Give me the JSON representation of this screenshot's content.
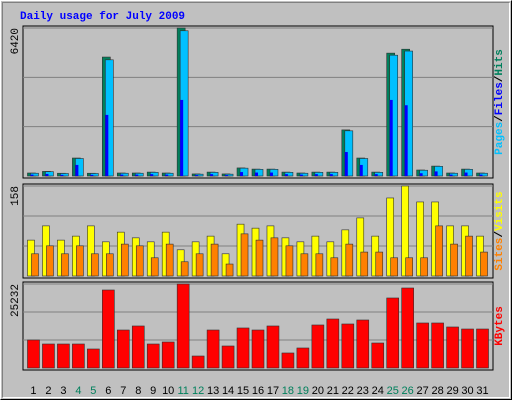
{
  "chart_data": [
    {
      "type": "bar",
      "title": "Daily usage for July 2009",
      "ylim": [
        0,
        6420
      ],
      "yticks": [
        {
          "value": 2140,
          "label": null
        },
        {
          "value": 4280,
          "label": null
        },
        6420
      ],
      "grid": true,
      "legend_separator": "/",
      "series": [
        {
          "name": "Hits",
          "color": "#00805c",
          "values": [
            130,
            200,
            120,
            780,
            120,
            5160,
            130,
            130,
            170,
            130,
            6420,
            90,
            170,
            90,
            350,
            300,
            300,
            170,
            130,
            170,
            170,
            2000,
            780,
            170,
            5330,
            5500,
            260,
            430,
            130,
            300,
            130
          ]
        },
        {
          "name": "Files",
          "color": "#0000ff",
          "values": [
            60,
            90,
            50,
            480,
            50,
            2650,
            60,
            60,
            80,
            60,
            3300,
            40,
            80,
            40,
            170,
            150,
            150,
            80,
            60,
            80,
            80,
            1040,
            480,
            80,
            3300,
            3070,
            120,
            200,
            60,
            150,
            60
          ]
        },
        {
          "name": "Pages",
          "color": "#00c0ff",
          "values": [
            120,
            190,
            110,
            760,
            110,
            5040,
            120,
            120,
            160,
            120,
            6300,
            80,
            160,
            80,
            340,
            290,
            290,
            160,
            120,
            160,
            160,
            1960,
            760,
            160,
            5240,
            5420,
            250,
            420,
            120,
            290,
            120
          ]
        }
      ]
    },
    {
      "type": "bar",
      "ylim": [
        0,
        158
      ],
      "yticks": [
        {
          "value": 52.7,
          "label": null
        },
        {
          "value": 105.3,
          "label": null
        },
        158
      ],
      "grid": true,
      "legend_separator": "/",
      "series": [
        {
          "name": "Visits",
          "color": "#ffff00",
          "values": [
            63,
            88,
            63,
            70,
            88,
            60,
            77,
            67,
            60,
            77,
            46,
            60,
            70,
            39,
            91,
            84,
            88,
            67,
            60,
            70,
            60,
            81,
            102,
            70,
            137,
            158,
            130,
            130,
            88,
            88,
            70
          ]
        },
        {
          "name": "Sites",
          "color": "#ff8000",
          "values": [
            39,
            53,
            39,
            53,
            39,
            39,
            56,
            53,
            32,
            56,
            25,
            39,
            56,
            21,
            74,
            63,
            67,
            53,
            39,
            39,
            32,
            56,
            42,
            42,
            32,
            32,
            32,
            88,
            56,
            70,
            42
          ]
        }
      ]
    },
    {
      "type": "bar",
      "ylim": [
        0,
        25232
      ],
      "yticks": [
        {
          "value": 8410.7,
          "label": null
        },
        {
          "value": 16821.3,
          "label": null
        },
        25232
      ],
      "grid": true,
      "categories": [
        "1",
        "2",
        "3",
        "4",
        "5",
        "6",
        "7",
        "8",
        "9",
        "10",
        "11",
        "12",
        "13",
        "14",
        "15",
        "16",
        "17",
        "18",
        "19",
        "20",
        "21",
        "22",
        "23",
        "24",
        "25",
        "26",
        "27",
        "28",
        "29",
        "30",
        "31"
      ],
      "x_label_colors": [
        "#000000",
        "#000000",
        "#000000",
        "#00805c",
        "#00805c",
        "#000000",
        "#000000",
        "#000000",
        "#000000",
        "#000000",
        "#00805c",
        "#00805c",
        "#000000",
        "#000000",
        "#000000",
        "#000000",
        "#000000",
        "#00805c",
        "#00805c",
        "#000000",
        "#000000",
        "#000000",
        "#000000",
        "#000000",
        "#00805c",
        "#00805c",
        "#000000",
        "#000000",
        "#000000",
        "#000000",
        "#000000"
      ],
      "series": [
        {
          "name": "KBytes",
          "color": "#ff0000",
          "values": [
            8410,
            7210,
            7210,
            7210,
            5710,
            23430,
            11410,
            12620,
            7210,
            7810,
            25232,
            3600,
            11410,
            6610,
            12020,
            11410,
            12620,
            4510,
            6010,
            12920,
            14720,
            13220,
            14420,
            7510,
            21030,
            24030,
            13520,
            13520,
            12320,
            11710,
            11710
          ]
        }
      ]
    }
  ]
}
